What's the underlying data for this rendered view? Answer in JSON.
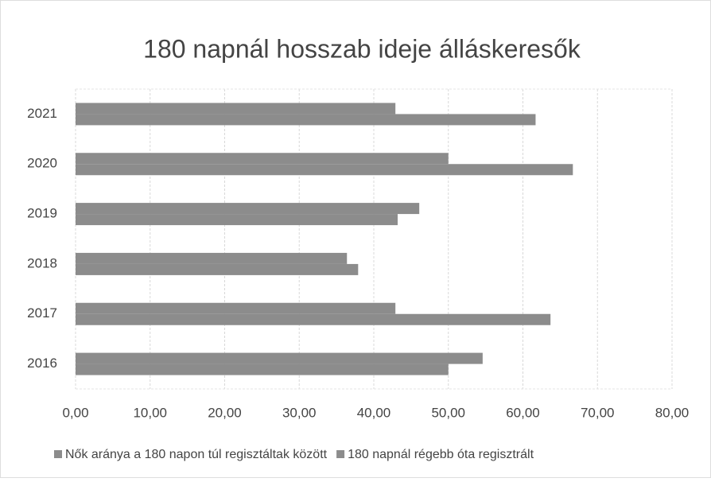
{
  "chart_data": {
    "type": "hbar",
    "title": "180 napnál hosszab ideje álláskeresők",
    "categories": [
      "2016",
      "2017",
      "2018",
      "2019",
      "2020",
      "2021"
    ],
    "series": [
      {
        "name": "Nők aránya a 180 napon túl regisztáltak között",
        "color": "#8c8c8c",
        "values": [
          50.0,
          63.7,
          37.9,
          43.2,
          66.7,
          61.7
        ]
      },
      {
        "name": "180 napnál régebb óta regisztrált",
        "color": "#8c8c8c",
        "values": [
          54.6,
          42.9,
          36.4,
          46.1,
          50.0,
          42.9
        ]
      }
    ],
    "xlim": [
      0,
      80
    ],
    "xticks": [
      {
        "value": 0,
        "label": "0,00"
      },
      {
        "value": 10,
        "label": "10,00"
      },
      {
        "value": 20,
        "label": "20,00"
      },
      {
        "value": 30,
        "label": "30,00"
      },
      {
        "value": 40,
        "label": "40,00"
      },
      {
        "value": 50,
        "label": "50,00"
      },
      {
        "value": 60,
        "label": "60,00"
      },
      {
        "value": 70,
        "label": "70,00"
      },
      {
        "value": 80,
        "label": "80,00"
      }
    ],
    "grid": true,
    "legend": "bottom"
  }
}
